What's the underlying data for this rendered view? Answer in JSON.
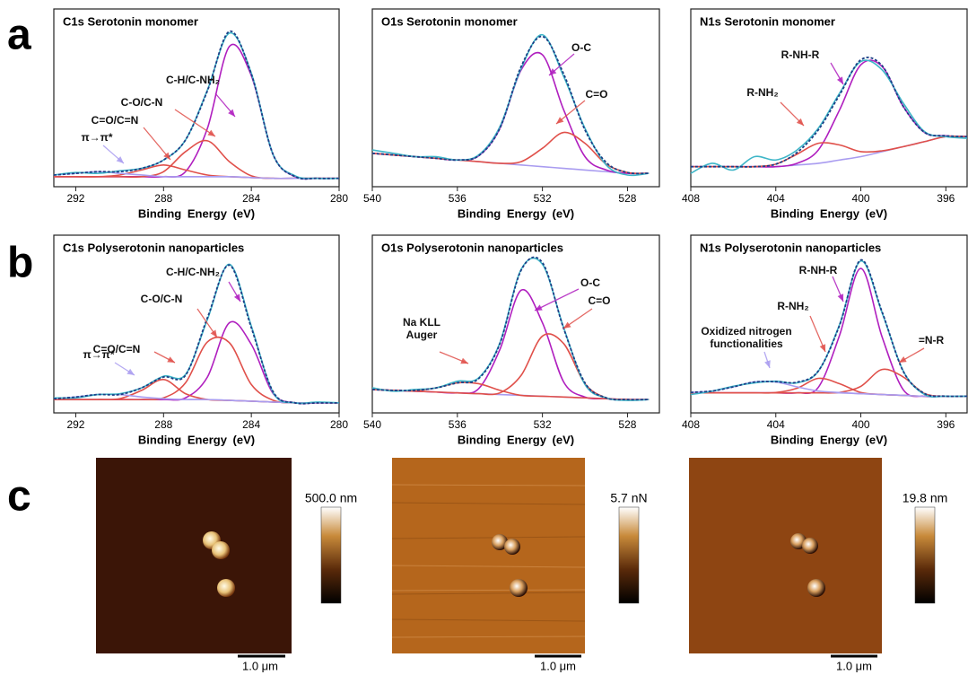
{
  "panel_labels": [
    "a",
    "b",
    "c"
  ],
  "chart_data": [
    {
      "type": "line",
      "title": "C1s Serotonin monomer",
      "x_label": "Binding Energy (eV)",
      "x": [
        293,
        292,
        291,
        290,
        289,
        288,
        287,
        286,
        285,
        284,
        283,
        282,
        281,
        280
      ],
      "xlim": [
        293,
        280
      ],
      "xticks": [
        292,
        288,
        284,
        280
      ],
      "ylim": [
        0,
        100
      ],
      "series": [
        {
          "color": "#a99cf0",
          "values": [
            6,
            6,
            6,
            6,
            6,
            6,
            6,
            6,
            6,
            5.5,
            5,
            5,
            5,
            5
          ]
        },
        {
          "name": "C-H/C-NH₂",
          "color": "#b01fbf",
          "values": [
            6,
            6,
            6,
            6,
            6,
            6,
            9,
            35,
            84,
            66.5,
            19,
            6,
            5,
            5
          ]
        },
        {
          "name": "C-O/C-N",
          "color": "#e0504a",
          "values": [
            6,
            6,
            6,
            6,
            6,
            9,
            21,
            27.5,
            15,
            6.5,
            5,
            5,
            5,
            5
          ]
        },
        {
          "name": "C=O/C=N",
          "color": "#e0504a",
          "values": [
            6,
            6,
            6,
            7,
            10,
            13,
            10,
            7,
            6,
            5.5,
            5,
            5,
            5,
            5
          ]
        },
        {
          "name": "π→π*",
          "color": "#a99cf0",
          "values": [
            7,
            8,
            9,
            8,
            7,
            6,
            6,
            6,
            6,
            5.5,
            5,
            5,
            5,
            5
          ]
        },
        {
          "color": "#3fb6c8",
          "values": [
            7,
            8.5,
            8,
            9.5,
            11,
            16,
            28,
            58,
            92,
            68,
            19,
            6.5,
            5,
            5
          ]
        },
        {
          "color": "#1b3f86",
          "dashed": true,
          "values": [
            7,
            8,
            9,
            9,
            11,
            16,
            28,
            57.5,
            93,
            67.5,
            19,
            6,
            5,
            5
          ]
        }
      ]
    },
    {
      "type": "line",
      "title": "O1s Serotonin monomer",
      "x_label": "Binding Energy (eV)",
      "x": [
        540,
        539,
        538,
        537,
        536,
        535,
        534,
        533,
        532,
        531,
        530,
        529,
        528,
        527
      ],
      "xlim": [
        540,
        526.5
      ],
      "xticks": [
        540,
        536,
        532,
        528
      ],
      "ylim": [
        0,
        100
      ],
      "series": [
        {
          "color": "#a99cf0",
          "values": [
            20,
            19,
            18,
            17,
            16,
            15,
            14,
            13,
            12,
            11,
            10,
            9,
            8,
            8
          ]
        },
        {
          "name": "O-C",
          "color": "#b01fbf",
          "values": [
            20,
            19,
            18,
            17,
            16,
            18.5,
            35,
            70,
            79,
            46,
            18,
            10,
            8,
            8
          ]
        },
        {
          "name": "C=O",
          "color": "#e0504a",
          "values": [
            20,
            19,
            18,
            17,
            16,
            15,
            14,
            15,
            23,
            32.5,
            26,
            13.5,
            8.5,
            8
          ]
        },
        {
          "color": "#3fb6c8",
          "values": [
            22,
            20,
            18,
            18,
            16,
            19,
            36,
            71,
            91,
            66,
            35,
            13,
            7,
            8
          ]
        },
        {
          "color": "#1b3f86",
          "dashed": true,
          "values": [
            20,
            19,
            18,
            17,
            16,
            18.5,
            35,
            72,
            90,
            67.5,
            34,
            14.5,
            8.5,
            8
          ]
        }
      ]
    },
    {
      "type": "line",
      "title": "N1s Serotonin monomer",
      "x_label": "Binding Energy (eV)",
      "x": [
        408,
        407,
        406,
        405,
        404,
        403,
        402,
        401,
        400,
        399,
        398,
        397,
        396,
        395
      ],
      "xlim": [
        408,
        395
      ],
      "xticks": [
        408,
        404,
        400,
        396
      ],
      "ylim": [
        0,
        100
      ],
      "series": [
        {
          "color": "#a99cf0",
          "values": [
            12,
            12,
            12,
            12,
            12,
            13,
            14,
            16,
            18,
            21,
            24,
            27,
            30,
            30
          ]
        },
        {
          "name": "R-NH-R",
          "color": "#b01fbf",
          "values": [
            12,
            12,
            12,
            12,
            12,
            14,
            22,
            46,
            73,
            72,
            48,
            32.5,
            30.5,
            30
          ]
        },
        {
          "name": "R-NH₂",
          "color": "#e0504a",
          "values": [
            12,
            12,
            12,
            12,
            13.5,
            19.5,
            26,
            25,
            21,
            21.5,
            24,
            27,
            30,
            30
          ]
        },
        {
          "color": "#3fb6c8",
          "values": [
            8,
            14,
            10,
            18,
            16,
            22,
            35,
            56,
            75,
            70,
            50,
            33,
            30,
            29
          ]
        },
        {
          "color": "#1b3f86",
          "dashed": true,
          "values": [
            12,
            12,
            12,
            12,
            13.5,
            20.5,
            34,
            55,
            76,
            72.5,
            48,
            32.5,
            30.5,
            30
          ]
        }
      ]
    },
    {
      "type": "line",
      "title": "C1s Polyserotonin nanoparticles",
      "x_label": "Binding Energy (eV)",
      "x": [
        293,
        292,
        291,
        290,
        289,
        288,
        287,
        286,
        285,
        284,
        283,
        282,
        281,
        280
      ],
      "xlim": [
        293,
        280
      ],
      "xticks": [
        292,
        288,
        284,
        280
      ],
      "ylim": [
        0,
        100
      ],
      "series": [
        {
          "color": "#a99cf0",
          "values": [
            8,
            8,
            8,
            8,
            8,
            8,
            8,
            8,
            7.5,
            7,
            6.5,
            6,
            6,
            6
          ]
        },
        {
          "name": "C-H/C-NH₂",
          "color": "#b01fbf",
          "values": [
            8,
            8,
            8,
            8,
            8,
            8,
            9,
            21.5,
            54,
            41,
            11.5,
            6,
            6,
            6
          ]
        },
        {
          "name": "C-O/C-N",
          "color": "#e0504a",
          "values": [
            8,
            8,
            8,
            8,
            8,
            9,
            18,
            42.5,
            42,
            17,
            7.5,
            6,
            6,
            6
          ]
        },
        {
          "name": "C=O/C=N",
          "color": "#e0504a",
          "values": [
            8,
            8,
            8,
            8.5,
            13.5,
            20,
            11.5,
            8,
            7.5,
            7,
            6.5,
            6,
            6,
            6
          ]
        },
        {
          "name": "π→π*",
          "color": "#a99cf0",
          "values": [
            8.5,
            9.5,
            11,
            11,
            9.5,
            8.5,
            8,
            8,
            7.5,
            7,
            6.5,
            6,
            6,
            6
          ]
        },
        {
          "color": "#3fb6c8",
          "values": [
            9,
            9,
            11,
            11.5,
            15,
            22,
            23,
            56,
            89,
            52,
            12,
            6,
            6.5,
            6
          ]
        },
        {
          "color": "#1b3f86",
          "dashed": true,
          "values": [
            8.5,
            9.5,
            11,
            11,
            15,
            21.5,
            22.5,
            57,
            88.5,
            51,
            12.5,
            6,
            6,
            6
          ]
        }
      ]
    },
    {
      "type": "line",
      "title": "O1s Polyserotonin nanoparticles",
      "x_label": "Binding Energy (eV)",
      "x": [
        540,
        539,
        538,
        537,
        536,
        535,
        534,
        533,
        532,
        531,
        530,
        529,
        528,
        527
      ],
      "xlim": [
        540,
        526.5
      ],
      "xticks": [
        540,
        536,
        532,
        528
      ],
      "ylim": [
        0,
        100
      ],
      "series": [
        {
          "color": "#a99cf0",
          "values": [
            14,
            13.5,
            13,
            12.5,
            12,
            11.5,
            11,
            10.5,
            10,
            9.5,
            9,
            8.5,
            8,
            8
          ]
        },
        {
          "name": "O-C",
          "color": "#b01fbf",
          "values": [
            14,
            13.5,
            13,
            12.5,
            12,
            14.5,
            38,
            73.5,
            54,
            18.5,
            9.5,
            8.5,
            8,
            8
          ]
        },
        {
          "name": "C=O",
          "color": "#e0504a",
          "values": [
            14,
            13.5,
            13,
            12.5,
            12,
            11.5,
            12,
            22.5,
            46,
            41.5,
            17.5,
            9,
            8,
            8
          ]
        },
        {
          "name": "Na KLL Auger",
          "color": "#e0504a",
          "values": [
            14,
            13.5,
            13.3,
            15,
            18,
            17.5,
            13.5,
            10.5,
            10,
            9.5,
            9,
            8.5,
            8,
            8
          ]
        },
        {
          "color": "#3fb6c8",
          "values": [
            15,
            13,
            14,
            15,
            19,
            21,
            42,
            86,
            89,
            51,
            17,
            9,
            7.5,
            8
          ]
        },
        {
          "color": "#1b3f86",
          "dashed": true,
          "values": [
            14,
            13.5,
            13.5,
            15,
            18,
            20.5,
            41.5,
            85.5,
            90,
            50.5,
            18,
            9,
            8,
            8
          ]
        }
      ]
    },
    {
      "type": "line",
      "title": "N1s Polyserotonin nanoparticles",
      "x_label": "Binding Energy (eV)",
      "x": [
        408,
        407,
        406,
        405,
        404,
        403,
        402,
        401,
        400,
        399,
        398,
        397,
        396,
        395
      ],
      "xlim": [
        408,
        395
      ],
      "xticks": [
        408,
        404,
        400,
        396
      ],
      "ylim": [
        0,
        100
      ],
      "series": [
        {
          "color": "#a99cf0",
          "values": [
            12,
            12,
            12,
            12,
            12,
            12,
            12,
            12,
            11.5,
            11,
            10.5,
            10,
            10,
            10
          ]
        },
        {
          "name": "R-NH-R",
          "color": "#b01fbf",
          "values": [
            12,
            12,
            12,
            12,
            12,
            12,
            15.3,
            46.5,
            86.5,
            45.5,
            13.8,
            10,
            10,
            10
          ]
        },
        {
          "name": "=N-R",
          "color": "#e0504a",
          "values": [
            12,
            12,
            12,
            12,
            12,
            12,
            12,
            12.3,
            15.9,
            26,
            21.5,
            11.6,
            10,
            10
          ]
        },
        {
          "name": "R-NH₂",
          "color": "#e0504a",
          "values": [
            12,
            12,
            12,
            12,
            12.2,
            14.8,
            20.7,
            17.5,
            12.2,
            11,
            10.5,
            10,
            10,
            10
          ]
        },
        {
          "name": "Oxidized nitrogen functionalities",
          "color": "#a99cf0",
          "values": [
            12.3,
            13.1,
            15.6,
            18.5,
            18.5,
            15.6,
            13.1,
            12.2,
            11.5,
            11,
            10.5,
            10,
            10,
            10
          ]
        },
        {
          "color": "#3fb6c8",
          "values": [
            11,
            13,
            16,
            18,
            19,
            18,
            25,
            53,
            91,
            60,
            25,
            11,
            10,
            10
          ]
        },
        {
          "color": "#1b3f86",
          "dashed": true,
          "values": [
            12.3,
            13.1,
            15.6,
            18.5,
            18.7,
            18.4,
            25.1,
            52.5,
            91.6,
            60.5,
            24.8,
            11.6,
            10,
            10
          ]
        }
      ]
    }
  ],
  "afm_images": [
    {
      "colorbar_label": "500.0 nm",
      "scale_bar": "1.0 μm"
    },
    {
      "colorbar_label": "5.7 nN",
      "scale_bar": "1.0 μm"
    },
    {
      "colorbar_label": "19.8 nm",
      "scale_bar": "1.0 μm"
    }
  ]
}
